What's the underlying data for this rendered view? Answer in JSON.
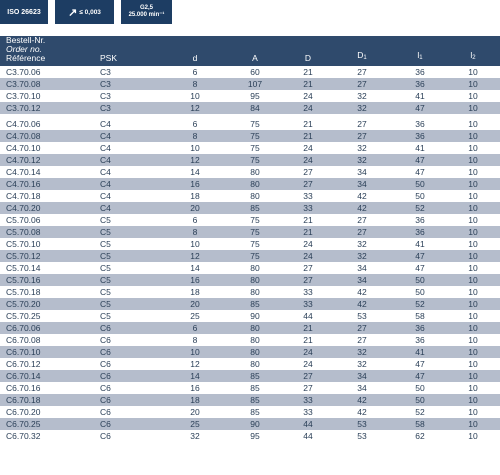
{
  "badges": {
    "iso": "ISO 26623",
    "runout_symbol": "↗",
    "runout": "≤ 0,003",
    "balance_grade": "G2,5",
    "balance_speed": "25.000 min⁻¹"
  },
  "header": {
    "order_de": "Bestell-Nr.",
    "order_en": "Order no.",
    "order_fr": "Référence",
    "columns": [
      "PSK",
      "d",
      "A",
      "D",
      "D",
      "l",
      "l"
    ],
    "column_subs": [
      "",
      "",
      "",
      "",
      "1",
      "1",
      "2"
    ]
  },
  "rows": [
    {
      "no": "C3.70.06",
      "psk": "C3",
      "d": "6",
      "A": "60",
      "D": "21",
      "D1": "27",
      "l1": "36",
      "l2": "10"
    },
    {
      "no": "C3.70.08",
      "psk": "C3",
      "d": "8",
      "A": "107",
      "D": "21",
      "D1": "27",
      "l1": "36",
      "l2": "10"
    },
    {
      "no": "C3.70.10",
      "psk": "C3",
      "d": "10",
      "A": "95",
      "D": "24",
      "D1": "32",
      "l1": "41",
      "l2": "10"
    },
    {
      "no": "C3.70.12",
      "psk": "C3",
      "d": "12",
      "A": "84",
      "D": "24",
      "D1": "32",
      "l1": "47",
      "l2": "10"
    },
    {
      "no": "C4.70.06",
      "psk": "C4",
      "d": "6",
      "A": "75",
      "D": "21",
      "D1": "27",
      "l1": "36",
      "l2": "10"
    },
    {
      "no": "C4.70.08",
      "psk": "C4",
      "d": "8",
      "A": "75",
      "D": "21",
      "D1": "27",
      "l1": "36",
      "l2": "10"
    },
    {
      "no": "C4.70.10",
      "psk": "C4",
      "d": "10",
      "A": "75",
      "D": "24",
      "D1": "32",
      "l1": "41",
      "l2": "10"
    },
    {
      "no": "C4.70.12",
      "psk": "C4",
      "d": "12",
      "A": "75",
      "D": "24",
      "D1": "32",
      "l1": "47",
      "l2": "10"
    },
    {
      "no": "C4.70.14",
      "psk": "C4",
      "d": "14",
      "A": "80",
      "D": "27",
      "D1": "34",
      "l1": "47",
      "l2": "10"
    },
    {
      "no": "C4.70.16",
      "psk": "C4",
      "d": "16",
      "A": "80",
      "D": "27",
      "D1": "34",
      "l1": "50",
      "l2": "10"
    },
    {
      "no": "C4.70.18",
      "psk": "C4",
      "d": "18",
      "A": "80",
      "D": "33",
      "D1": "42",
      "l1": "50",
      "l2": "10"
    },
    {
      "no": "C4.70.20",
      "psk": "C4",
      "d": "20",
      "A": "85",
      "D": "33",
      "D1": "42",
      "l1": "52",
      "l2": "10"
    },
    {
      "no": "C5.70.06",
      "psk": "C5",
      "d": "6",
      "A": "75",
      "D": "21",
      "D1": "27",
      "l1": "36",
      "l2": "10"
    },
    {
      "no": "C5.70.08",
      "psk": "C5",
      "d": "8",
      "A": "75",
      "D": "21",
      "D1": "27",
      "l1": "36",
      "l2": "10"
    },
    {
      "no": "C5.70.10",
      "psk": "C5",
      "d": "10",
      "A": "75",
      "D": "24",
      "D1": "32",
      "l1": "41",
      "l2": "10"
    },
    {
      "no": "C5.70.12",
      "psk": "C5",
      "d": "12",
      "A": "75",
      "D": "24",
      "D1": "32",
      "l1": "47",
      "l2": "10"
    },
    {
      "no": "C5.70.14",
      "psk": "C5",
      "d": "14",
      "A": "80",
      "D": "27",
      "D1": "34",
      "l1": "47",
      "l2": "10"
    },
    {
      "no": "C5.70.16",
      "psk": "C5",
      "d": "16",
      "A": "80",
      "D": "27",
      "D1": "34",
      "l1": "50",
      "l2": "10"
    },
    {
      "no": "C5.70.18",
      "psk": "C5",
      "d": "18",
      "A": "80",
      "D": "33",
      "D1": "42",
      "l1": "50",
      "l2": "10"
    },
    {
      "no": "C5.70.20",
      "psk": "C5",
      "d": "20",
      "A": "85",
      "D": "33",
      "D1": "42",
      "l1": "52",
      "l2": "10"
    },
    {
      "no": "C5.70.25",
      "psk": "C5",
      "d": "25",
      "A": "90",
      "D": "44",
      "D1": "53",
      "l1": "58",
      "l2": "10"
    },
    {
      "no": "C6.70.06",
      "psk": "C6",
      "d": "6",
      "A": "80",
      "D": "21",
      "D1": "27",
      "l1": "36",
      "l2": "10"
    },
    {
      "no": "C6.70.08",
      "psk": "C6",
      "d": "8",
      "A": "80",
      "D": "21",
      "D1": "27",
      "l1": "36",
      "l2": "10"
    },
    {
      "no": "C6.70.10",
      "psk": "C6",
      "d": "10",
      "A": "80",
      "D": "24",
      "D1": "32",
      "l1": "41",
      "l2": "10"
    },
    {
      "no": "C6.70.12",
      "psk": "C6",
      "d": "12",
      "A": "80",
      "D": "24",
      "D1": "32",
      "l1": "47",
      "l2": "10"
    },
    {
      "no": "C6.70.14",
      "psk": "C6",
      "d": "14",
      "A": "85",
      "D": "27",
      "D1": "34",
      "l1": "47",
      "l2": "10"
    },
    {
      "no": "C6.70.16",
      "psk": "C6",
      "d": "16",
      "A": "85",
      "D": "27",
      "D1": "34",
      "l1": "50",
      "l2": "10"
    },
    {
      "no": "C6.70.18",
      "psk": "C6",
      "d": "18",
      "A": "85",
      "D": "33",
      "D1": "42",
      "l1": "50",
      "l2": "10"
    },
    {
      "no": "C6.70.20",
      "psk": "C6",
      "d": "20",
      "A": "85",
      "D": "33",
      "D1": "42",
      "l1": "52",
      "l2": "10"
    },
    {
      "no": "C6.70.25",
      "psk": "C6",
      "d": "25",
      "A": "90",
      "D": "44",
      "D1": "53",
      "l1": "58",
      "l2": "10"
    },
    {
      "no": "C6.70.32",
      "psk": "C6",
      "d": "32",
      "A": "95",
      "D": "44",
      "D1": "53",
      "l1": "62",
      "l2": "10"
    }
  ],
  "colors": {
    "badge_bg": "#1d3d63",
    "header_bg": "#2f4a6c",
    "stripe_bg": "#b5bdcc",
    "text": "#2a3f57"
  }
}
